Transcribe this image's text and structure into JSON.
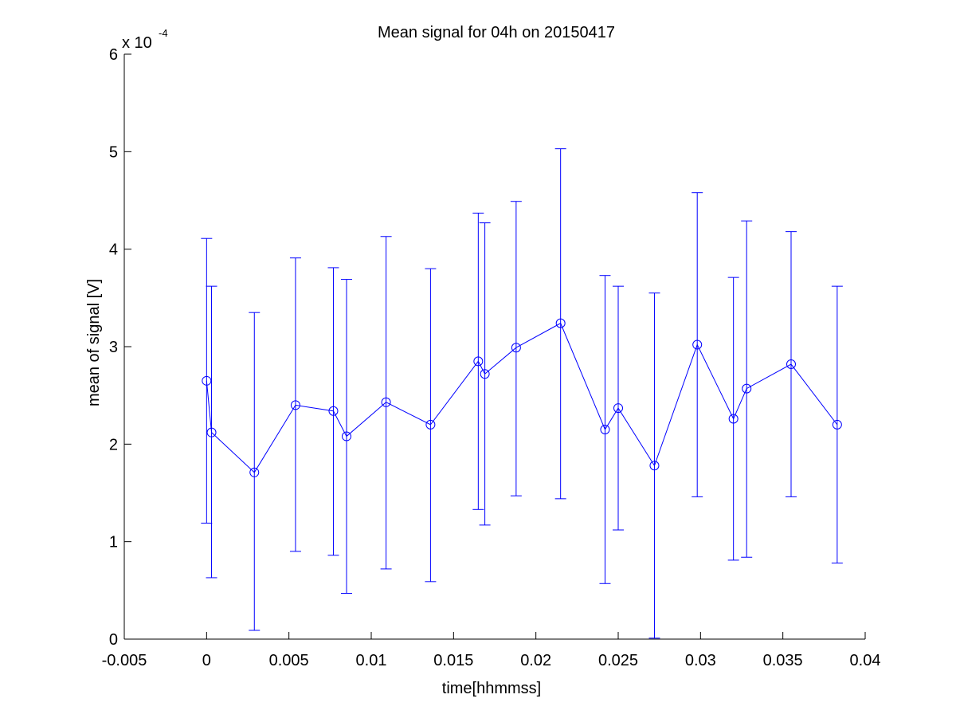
{
  "chart_data": {
    "type": "line",
    "title": "Mean signal for 04h on 20150417",
    "xlabel": "time[hhmmss]",
    "ylabel": "mean of signal [V]",
    "xlim": [
      -0.005,
      0.04
    ],
    "ylim": [
      0,
      6
    ],
    "x_ticks": [
      "-0.005",
      "0",
      "0.005",
      "0.01",
      "0.015",
      "0.02",
      "0.025",
      "0.03",
      "0.035",
      "0.04"
    ],
    "y_ticks": [
      "0",
      "1",
      "2",
      "3",
      "4",
      "5",
      "6"
    ],
    "y_multiplier": {
      "base": "x 10",
      "exponent": "-4"
    },
    "grid": false,
    "marker": "circle",
    "colors": {
      "series": "#0000ff",
      "axes": "#000000"
    },
    "series": [
      {
        "x": [
          0.0,
          0.0003,
          0.0029,
          0.0054,
          0.0077,
          0.0085,
          0.0109,
          0.0136,
          0.0165,
          0.0169,
          0.0188,
          0.0215,
          0.0242,
          0.025,
          0.0272,
          0.0298,
          0.032,
          0.0328,
          0.0355,
          0.0383
        ],
        "y": [
          2.65,
          2.12,
          1.71,
          2.4,
          2.34,
          2.08,
          2.43,
          2.2,
          2.85,
          2.72,
          2.99,
          3.24,
          2.15,
          2.37,
          1.78,
          3.02,
          2.26,
          2.57,
          2.82,
          2.2
        ],
        "y_lower": [
          1.19,
          0.63,
          0.09,
          0.9,
          0.86,
          0.47,
          0.72,
          0.59,
          1.33,
          1.17,
          1.47,
          1.44,
          0.57,
          1.12,
          0.01,
          1.46,
          0.81,
          0.84,
          1.46,
          0.78
        ],
        "y_upper": [
          4.11,
          3.62,
          3.35,
          3.91,
          3.81,
          3.69,
          4.13,
          3.8,
          4.37,
          4.27,
          4.49,
          5.03,
          3.73,
          3.62,
          3.55,
          4.58,
          3.71,
          4.29,
          4.18,
          3.62
        ]
      }
    ]
  }
}
